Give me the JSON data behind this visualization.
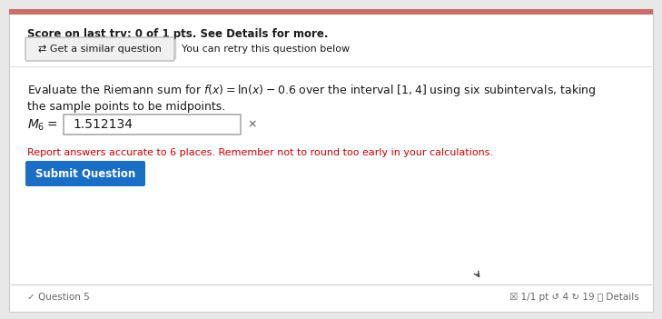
{
  "bg_color": "#e8e8e8",
  "panel_color": "#ffffff",
  "top_bar_color": "#c9706a",
  "score_text": "Score on last try: 0 of 1 pts. See Details for more.",
  "retry_btn_text": "⇄ Get a similar question",
  "retry_sub_text": "You can retry this question below",
  "question_line1": "Evaluate the Riemann sum for $f(x) = \\ln(x) - 0.6$ over the interval $[1, 4]$ using six subintervals, taking",
  "question_line2": "the sample points to be midpoints.",
  "m6_label": "$M_6 =$",
  "m6_value": "1.512134",
  "x_mark": "×",
  "report_text": "Report answers accurate to 6 places. Remember not to round too early in your calculations.",
  "submit_btn_text": "Submit Question",
  "submit_btn_color": "#1a6fc4",
  "footer_left": "✓ Question 5",
  "footer_right": "☒ 1/1 pt ↺ 4 ↻ 19 ⓘ Details",
  "score_fontsize": 8.5,
  "question_fontsize": 9,
  "m6_fontsize": 10,
  "report_fontsize": 8,
  "footer_fontsize": 7.5,
  "red_color": "#cc0000",
  "dark_text": "#1a1a1a",
  "gray_text": "#666666",
  "border_color": "#cccccc",
  "input_border": "#aaaaaa",
  "retry_bg": "#f0f0f0"
}
